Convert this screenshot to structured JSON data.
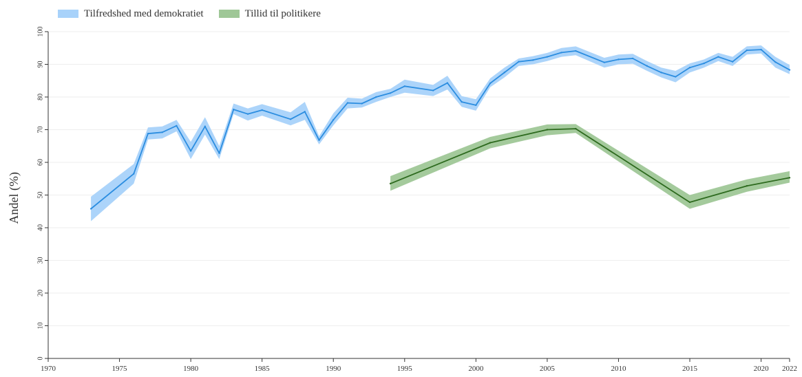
{
  "chart_data": {
    "type": "line",
    "title": "",
    "xlabel": "",
    "ylabel": "Andel (%)",
    "xlim": [
      1970,
      2022
    ],
    "ylim": [
      0,
      100
    ],
    "xticks": [
      1970,
      1975,
      1980,
      1985,
      1990,
      1995,
      2000,
      2005,
      2010,
      2015,
      2020,
      2022
    ],
    "yticks": [
      0,
      10,
      20,
      30,
      40,
      50,
      60,
      70,
      80,
      90,
      100
    ],
    "grid": "horizontal",
    "legend_position": "top-left",
    "series": [
      {
        "name": "Tilfredshed med demokratiet",
        "line_color": "#2b8de0",
        "band_color": "#a8d2fa",
        "x": [
          1973,
          1976,
          1977,
          1978,
          1979,
          1980,
          1981,
          1982,
          1983,
          1984,
          1985,
          1987,
          1988,
          1989,
          1990,
          1991,
          1992,
          1993,
          1994,
          1995,
          1997,
          1998,
          1999,
          2000,
          2001,
          2002,
          2003,
          2004,
          2005,
          2006,
          2007,
          2009,
          2010,
          2011,
          2012,
          2013,
          2014,
          2015,
          2016,
          2017,
          2018,
          2019,
          2020,
          2021,
          2022
        ],
        "y": [
          45.8,
          56.5,
          68.8,
          69.2,
          71.2,
          63.5,
          71.0,
          62.8,
          76.2,
          74.8,
          76.0,
          73.2,
          75.5,
          66.8,
          73.0,
          78.2,
          78.0,
          80.0,
          81.2,
          83.3,
          82.0,
          84.3,
          78.5,
          77.5,
          84.2,
          87.5,
          90.8,
          91.3,
          92.3,
          93.6,
          94.1,
          90.6,
          91.5,
          91.8,
          89.5,
          87.5,
          86.2,
          89.0,
          90.3,
          92.3,
          90.8,
          94.3,
          94.5,
          90.7,
          88.3
        ],
        "lower": [
          42.0,
          53.5,
          67.0,
          67.3,
          69.5,
          61.0,
          68.5,
          61.0,
          74.8,
          72.8,
          74.3,
          71.3,
          73.0,
          65.5,
          71.3,
          76.5,
          76.8,
          78.5,
          80.0,
          81.3,
          80.3,
          82.3,
          77.0,
          75.8,
          83.0,
          86.0,
          89.5,
          90.0,
          91.0,
          92.3,
          92.8,
          89.0,
          90.0,
          90.2,
          88.0,
          86.0,
          84.5,
          87.5,
          89.0,
          91.0,
          89.5,
          93.0,
          93.3,
          89.0,
          87.0
        ],
        "upper": [
          49.5,
          59.5,
          70.7,
          71.0,
          73.0,
          66.3,
          73.8,
          65.0,
          78.0,
          76.5,
          77.8,
          75.3,
          78.5,
          68.0,
          75.0,
          79.8,
          79.5,
          81.5,
          82.5,
          85.3,
          83.7,
          86.5,
          80.3,
          79.3,
          85.7,
          89.0,
          91.8,
          92.5,
          93.5,
          95.0,
          95.5,
          92.0,
          93.0,
          93.2,
          91.0,
          89.0,
          88.0,
          90.3,
          91.5,
          93.5,
          92.3,
          95.5,
          95.8,
          92.3,
          89.8
        ]
      },
      {
        "name": "Tillid til politikere",
        "line_color": "#2d6a1e",
        "band_color": "#9fc797",
        "x": [
          1994,
          2001,
          2005,
          2007,
          2015,
          2019,
          2022
        ],
        "y": [
          53.5,
          66.0,
          70.0,
          70.3,
          47.8,
          52.8,
          55.3
        ],
        "lower": [
          51.3,
          64.3,
          68.3,
          69.0,
          45.8,
          51.0,
          53.8
        ],
        "upper": [
          55.8,
          67.8,
          71.6,
          71.7,
          50.0,
          54.8,
          57.3
        ]
      }
    ]
  }
}
